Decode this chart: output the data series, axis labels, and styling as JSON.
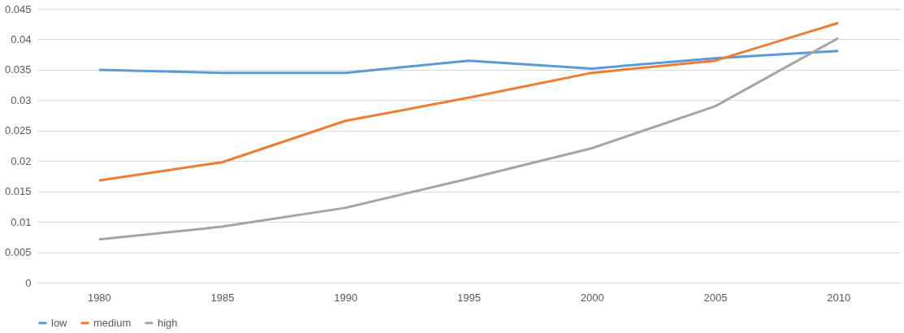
{
  "chart_data": {
    "type": "line",
    "categories": [
      "1980",
      "1985",
      "1990",
      "1995",
      "2000",
      "2005",
      "2010"
    ],
    "series": [
      {
        "name": "low",
        "color": "#5b9bd5",
        "values": [
          0.035,
          0.0345,
          0.0345,
          0.0365,
          0.0352,
          0.0369,
          0.0381
        ]
      },
      {
        "name": "medium",
        "color": "#ed7d31",
        "values": [
          0.0168,
          0.0198,
          0.0266,
          0.0304,
          0.0345,
          0.0365,
          0.0427
        ]
      },
      {
        "name": "high",
        "color": "#a5a5a5",
        "values": [
          0.0071,
          0.0092,
          0.0123,
          0.0171,
          0.0221,
          0.029,
          0.0402
        ]
      }
    ],
    "ylim": [
      0,
      0.045
    ],
    "yticks": [
      0,
      0.005,
      0.01,
      0.015,
      0.02,
      0.025,
      0.03,
      0.035,
      0.04,
      0.045
    ],
    "grid": "y",
    "legend": "bottom",
    "marker": "none",
    "line_style": "solid"
  }
}
